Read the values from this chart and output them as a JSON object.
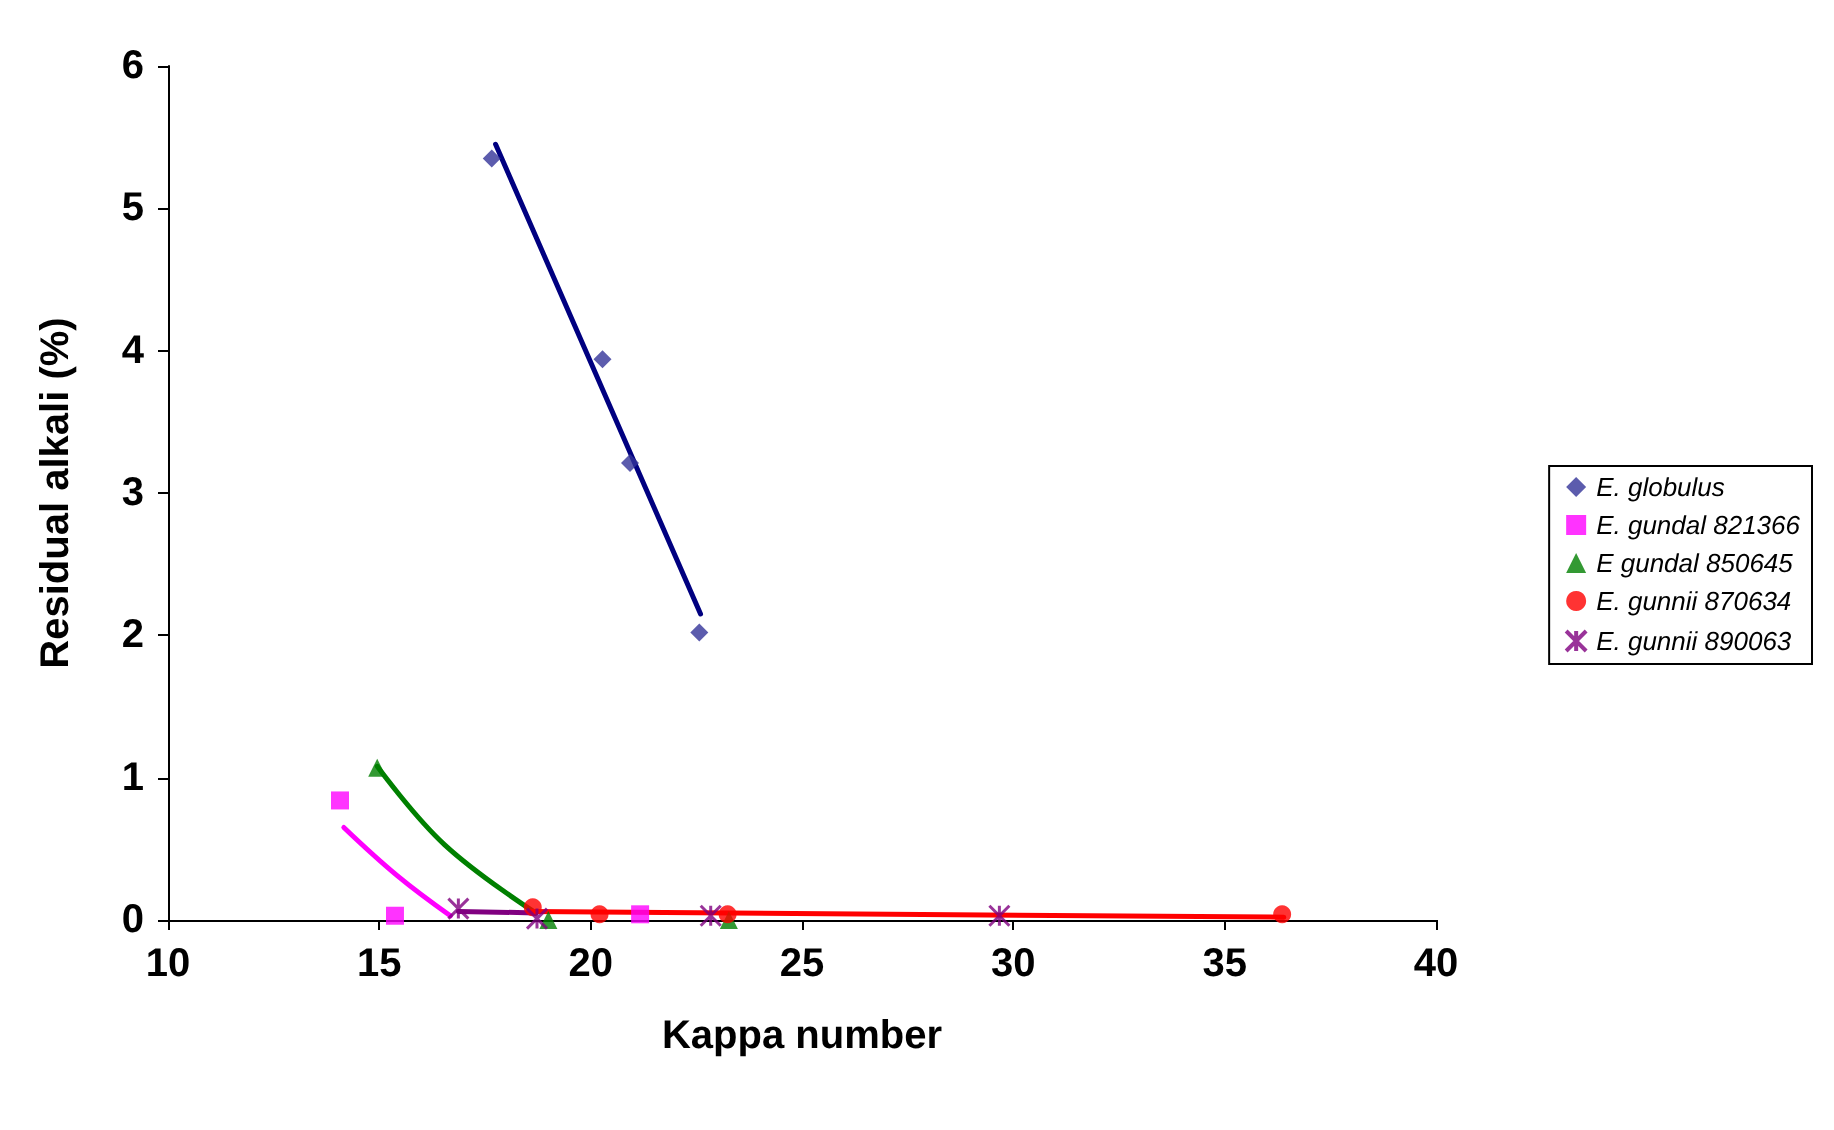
{
  "chart_data": {
    "type": "scatter",
    "xlabel": "Kappa number",
    "ylabel": "Residual alkali (%)",
    "xlim": [
      10,
      40
    ],
    "ylim": [
      0,
      6
    ],
    "xticks": [
      10,
      15,
      20,
      25,
      30,
      35,
      40
    ],
    "yticks": [
      0,
      1,
      2,
      3,
      4,
      5,
      6
    ],
    "grid": false,
    "legend": "right",
    "series": [
      {
        "name": "E. globulus",
        "color": "#333399",
        "marker": "diamond",
        "x": [
          17.66,
          20.28,
          20.93,
          22.57
        ],
        "values": [
          5.35,
          3.94,
          3.21,
          2.02
        ]
      },
      {
        "name": "E. gundal 821366",
        "color": "#ff00ff",
        "marker": "square",
        "x": [
          14.07,
          15.37,
          21.17
        ],
        "values": [
          0.84,
          0.03,
          0.04
        ]
      },
      {
        "name": "E gundal 850645",
        "color": "#008000",
        "marker": "triangle",
        "x": [
          14.95,
          19.0,
          23.27
        ],
        "values": [
          1.07,
          0,
          0
        ]
      },
      {
        "name": "E. gunnii 870634",
        "color": "#ff0000",
        "marker": "circle",
        "x": [
          18.63,
          20.21,
          23.24,
          36.36
        ],
        "values": [
          0.09,
          0.04,
          0.04,
          0.04
        ]
      },
      {
        "name": "E. gunnii 890063",
        "color": "#800080",
        "marker": "cross",
        "x": [
          16.87,
          18.73,
          22.84,
          29.67
        ],
        "values": [
          0.08,
          0.01,
          0.03,
          0.03
        ]
      },
      {
        "type": "line",
        "color": "#000080",
        "marker": "none",
        "x": [
          17.75,
          22.6
        ],
        "values": [
          5.45,
          2.15
        ]
      },
      {
        "type": "line",
        "color": "#ff00ff",
        "marker": "none",
        "x": [
          14.16,
          15.43,
          16.68
        ],
        "values": [
          0.65,
          0.31,
          0.03
        ]
      },
      {
        "type": "line",
        "color": "#008000",
        "marker": "none",
        "x": [
          14.95,
          16.54,
          18.7
        ],
        "values": [
          1.08,
          0.53,
          0.05
        ]
      },
      {
        "type": "line",
        "color": "#800080",
        "marker": "none",
        "x": [
          16.87,
          18.7
        ],
        "values": [
          0.06,
          0.05
        ]
      },
      {
        "type": "line",
        "color": "#ff0000",
        "marker": "none",
        "x": [
          18.6,
          36.4
        ],
        "values": [
          0.06,
          0.02
        ]
      }
    ]
  }
}
